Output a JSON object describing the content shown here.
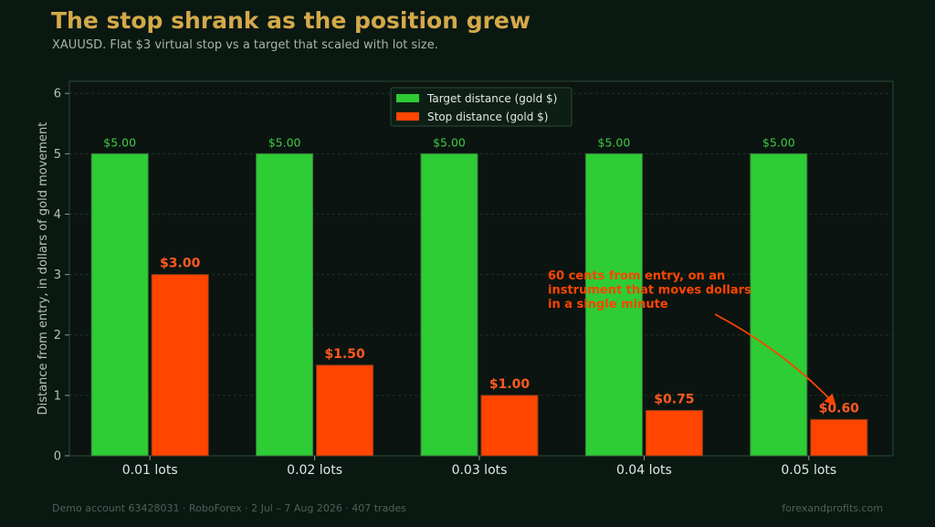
{
  "header": {
    "title": "The stop shrank as the position grew",
    "subtitle": "XAUUSD. Flat $3 virtual stop vs a target that scaled with lot size."
  },
  "footer": {
    "left": "Demo account 63428031  ·  RoboForex  ·  2 Jul – 7 Aug 2026  ·  407 trades",
    "right": "forexandprofits.com"
  },
  "chart_data": {
    "type": "bar",
    "title": "",
    "xlabel": "",
    "ylabel": "Distance from entry, in dollars of gold movement",
    "categories": [
      "0.01 lots",
      "0.02 lots",
      "0.03 lots",
      "0.04 lots",
      "0.05 lots"
    ],
    "series": [
      {
        "name": "Target distance (gold $)",
        "values": [
          5.0,
          5.0,
          5.0,
          5.0,
          5.0
        ],
        "labels": [
          "$5.00",
          "$5.00",
          "$5.00",
          "$5.00",
          "$5.00"
        ],
        "color": "#2ecc35"
      },
      {
        "name": "Stop distance (gold $)",
        "values": [
          3.0,
          1.5,
          1.0,
          0.75,
          0.6
        ],
        "labels": [
          "$3.00",
          "$1.50",
          "$1.00",
          "$0.75",
          "$0.60"
        ],
        "color": "#ff4500"
      }
    ],
    "ylim": [
      0,
      6.2
    ],
    "yticks": [
      0,
      1,
      2,
      3,
      4,
      5,
      6
    ],
    "grid": true,
    "legend": "top-center",
    "annotation": {
      "text_lines": [
        "60 cents from entry, on an",
        "instrument that moves dollars",
        "in a single minute"
      ],
      "target_category": "0.05 lots",
      "target_series": 1,
      "color": "#ff4500"
    }
  }
}
